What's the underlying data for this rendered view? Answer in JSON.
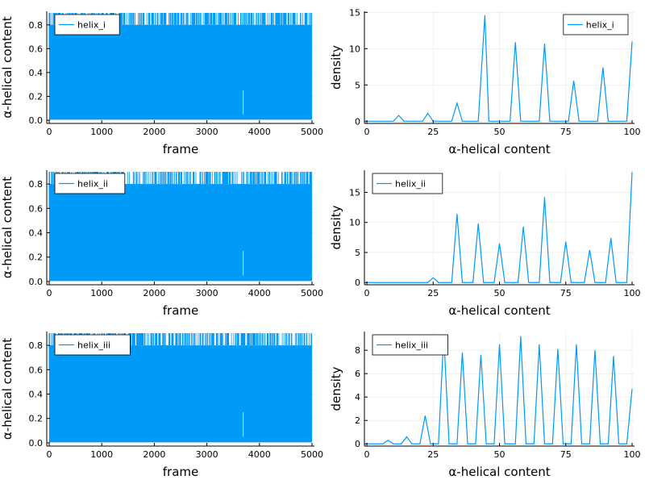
{
  "figure": {
    "background": "#ffffff",
    "series_color": "#009af9",
    "grid_color": "#e6e6e6"
  },
  "chart_data": [
    {
      "panel": "trace-1",
      "type": "line",
      "style": "dense-trajectory-trace",
      "series": [
        {
          "name": "helix_i",
          "values_note": ""
        }
      ],
      "legend": "top-left",
      "xlabel": "frame",
      "ylabel": "α-helical content",
      "xlim": [
        0,
        5000
      ],
      "ylim": [
        0,
        0.9
      ],
      "xticks": [
        0,
        1000,
        2000,
        3000,
        4000,
        5000
      ],
      "yticks": [
        0.0,
        0.2,
        0.4,
        0.6,
        0.8
      ],
      "ytick_labels": [
        "0.0",
        "0.2",
        "0.4",
        "0.6",
        "0.8"
      ],
      "grid": true,
      "frames": 5000,
      "value_levels": [
        0.0,
        0.1,
        0.2,
        0.3,
        0.4,
        0.5,
        0.6,
        0.7,
        0.8,
        0.9
      ],
      "top_dips": [
        [
          0,
          0.6
        ],
        [
          250,
          0.6
        ],
        [
          500,
          0.6
        ],
        [
          860,
          0.6
        ],
        [
          1390,
          0.5
        ],
        [
          1600,
          0.6
        ],
        [
          1720,
          0.6
        ],
        [
          2180,
          0.6
        ],
        [
          2750,
          0.6
        ],
        [
          3050,
          0.6
        ],
        [
          3300,
          0.6
        ],
        [
          3700,
          0.6
        ],
        [
          4100,
          0.6
        ],
        [
          4500,
          0.6
        ],
        [
          4900,
          0.6
        ]
      ]
    },
    {
      "panel": "hist-1",
      "type": "line",
      "series": [
        {
          "name": "helix_i",
          "x": [
            0,
            10,
            12,
            14,
            21,
            23,
            25,
            32,
            34,
            36,
            42,
            44.5,
            46,
            54,
            56,
            58,
            65,
            67,
            69,
            76,
            78,
            80,
            87,
            89,
            91,
            98,
            100
          ],
          "y": [
            0,
            0,
            0.8,
            0,
            0,
            1.1,
            0,
            0,
            2.5,
            0,
            0,
            14.6,
            0,
            0,
            10.9,
            0,
            0,
            10.7,
            0,
            0,
            5.6,
            0,
            0,
            7.4,
            0,
            0,
            11.0
          ]
        }
      ],
      "legend": "top-right",
      "xlabel": "α-helical content",
      "ylabel": "density",
      "xlim": [
        0,
        100
      ],
      "ylim": [
        0,
        15
      ],
      "xticks": [
        0,
        25,
        50,
        75,
        100
      ],
      "yticks": [
        0,
        5,
        10,
        15
      ],
      "grid": true
    },
    {
      "panel": "trace-2",
      "type": "line",
      "style": "dense-trajectory-trace",
      "series": [
        {
          "name": "helix_ii"
        }
      ],
      "legend": "top-left",
      "xlabel": "frame",
      "ylabel": "α-helical content",
      "xlim": [
        0,
        5000
      ],
      "ylim": [
        0,
        0.9
      ],
      "xticks": [
        0,
        1000,
        2000,
        3000,
        4000,
        5000
      ],
      "yticks": [
        0.0,
        0.2,
        0.4,
        0.6,
        0.8
      ],
      "ytick_labels": [
        "0.0",
        "0.2",
        "0.4",
        "0.6",
        "0.8"
      ],
      "grid": true,
      "frames": 5000,
      "value_levels": [
        0.0,
        0.1,
        0.2,
        0.3,
        0.4,
        0.5,
        0.6,
        0.7,
        0.8,
        0.9
      ],
      "top_dips": [
        [
          0,
          0.6
        ],
        [
          250,
          0.6
        ],
        [
          500,
          0.6
        ],
        [
          860,
          0.6
        ],
        [
          1390,
          0.5
        ],
        [
          1600,
          0.6
        ],
        [
          1720,
          0.6
        ],
        [
          2180,
          0.6
        ],
        [
          2750,
          0.6
        ],
        [
          3050,
          0.6
        ],
        [
          3300,
          0.6
        ],
        [
          3700,
          0.6
        ],
        [
          4100,
          0.6
        ],
        [
          4500,
          0.6
        ],
        [
          4900,
          0.6
        ]
      ]
    },
    {
      "panel": "hist-2",
      "type": "line",
      "series": [
        {
          "name": "helix_ii",
          "x": [
            0,
            23,
            25,
            27,
            32,
            34,
            36,
            40,
            42,
            44,
            48,
            50,
            52,
            57,
            59,
            61,
            65,
            67,
            69,
            73,
            75,
            77,
            82,
            84,
            86,
            90,
            92,
            94,
            98,
            100
          ],
          "y": [
            0,
            0,
            0.8,
            0,
            0,
            11.4,
            0,
            0,
            9.8,
            0,
            0,
            6.5,
            0,
            0,
            9.3,
            0,
            0,
            14.2,
            0,
            0,
            6.8,
            0,
            0,
            5.4,
            0,
            0,
            7.4,
            0,
            0,
            18.4
          ]
        }
      ],
      "legend": "top-left",
      "xlabel": "α-helical content",
      "ylabel": "density",
      "xlim": [
        0,
        100
      ],
      "ylim": [
        0,
        18.5
      ],
      "xticks": [
        0,
        25,
        50,
        75,
        100
      ],
      "yticks": [
        0,
        5,
        10,
        15
      ],
      "grid": true
    },
    {
      "panel": "trace-3",
      "type": "line",
      "style": "dense-trajectory-trace",
      "series": [
        {
          "name": "helix_iii"
        }
      ],
      "legend": "top-left",
      "xlabel": "frame",
      "ylabel": "α-helical content",
      "xlim": [
        0,
        5000
      ],
      "ylim": [
        0,
        0.9
      ],
      "xticks": [
        0,
        1000,
        2000,
        3000,
        4000,
        5000
      ],
      "yticks": [
        0.0,
        0.2,
        0.4,
        0.6,
        0.8
      ],
      "ytick_labels": [
        "0.0",
        "0.2",
        "0.4",
        "0.6",
        "0.8"
      ],
      "grid": true,
      "frames": 5000,
      "value_levels": [
        0.0,
        0.1,
        0.2,
        0.3,
        0.4,
        0.5,
        0.6,
        0.7,
        0.8,
        0.9
      ],
      "top_dips": [
        [
          0,
          0.6
        ],
        [
          250,
          0.6
        ],
        [
          500,
          0.6
        ],
        [
          860,
          0.6
        ],
        [
          1390,
          0.5
        ],
        [
          1600,
          0.6
        ],
        [
          1720,
          0.6
        ],
        [
          2180,
          0.6
        ],
        [
          2750,
          0.6
        ],
        [
          3050,
          0.6
        ],
        [
          3300,
          0.6
        ],
        [
          3700,
          0.6
        ],
        [
          4100,
          0.6
        ],
        [
          4500,
          0.6
        ],
        [
          4900,
          0.6
        ]
      ]
    },
    {
      "panel": "hist-3",
      "type": "line",
      "series": [
        {
          "name": "helix_iii",
          "x": [
            0,
            6,
            8,
            10,
            13,
            15,
            17,
            20,
            22,
            24,
            27,
            29,
            31,
            34,
            36,
            38,
            41,
            43,
            45,
            48,
            50,
            52,
            56,
            58,
            60,
            63,
            65,
            67,
            70,
            72,
            74,
            77,
            79,
            81,
            84,
            86,
            88,
            91,
            93,
            95,
            98,
            100
          ],
          "y": [
            0,
            0,
            0.3,
            0,
            0,
            0.6,
            0,
            0,
            2.4,
            0,
            0,
            9.3,
            0,
            0,
            7.8,
            0,
            0,
            7.6,
            0,
            0,
            8.5,
            0,
            0,
            9.2,
            0,
            0,
            8.5,
            0,
            0,
            8.1,
            0,
            0,
            8.5,
            0,
            0,
            8.0,
            0,
            0,
            7.5,
            0,
            0,
            4.7
          ]
        }
      ],
      "legend": "top-left",
      "xlabel": "α-helical content",
      "ylabel": "density",
      "xlim": [
        0,
        100
      ],
      "ylim": [
        0,
        9.5
      ],
      "xticks": [
        0,
        25,
        50,
        75,
        100
      ],
      "yticks": [
        0,
        2,
        4,
        6,
        8
      ],
      "grid": true
    }
  ]
}
